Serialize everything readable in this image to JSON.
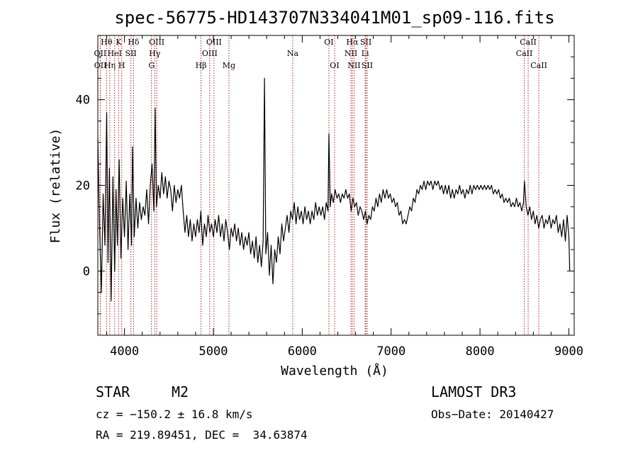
{
  "chart_data": {
    "type": "line",
    "title": "spec-56775-HD143707N334041M01_sp09-116.fits",
    "xlabel": "Wavelength (Å)",
    "ylabel": "Flux (relative)",
    "xlim": [
      3700,
      9060
    ],
    "ylim": [
      -15,
      55
    ],
    "xticks": [
      4000,
      5000,
      6000,
      7000,
      8000,
      9000
    ],
    "yticks": [
      0,
      20,
      40
    ],
    "grid": false,
    "series": [
      {
        "color": "#000000",
        "points": [
          [
            3700,
            31
          ],
          [
            3720,
            10
          ],
          [
            3740,
            -5
          ],
          [
            3760,
            18
          ],
          [
            3780,
            6
          ],
          [
            3800,
            37
          ],
          [
            3815,
            2
          ],
          [
            3830,
            24
          ],
          [
            3850,
            -7
          ],
          [
            3870,
            22
          ],
          [
            3890,
            0
          ],
          [
            3905,
            19
          ],
          [
            3920,
            6
          ],
          [
            3940,
            26
          ],
          [
            3960,
            3
          ],
          [
            3980,
            17
          ],
          [
            4000,
            8
          ],
          [
            4020,
            21
          ],
          [
            4040,
            5
          ],
          [
            4060,
            18
          ],
          [
            4080,
            6
          ],
          [
            4090,
            29
          ],
          [
            4110,
            8
          ],
          [
            4130,
            17
          ],
          [
            4150,
            10
          ],
          [
            4170,
            16
          ],
          [
            4190,
            12
          ],
          [
            4210,
            15
          ],
          [
            4230,
            13
          ],
          [
            4250,
            19
          ],
          [
            4270,
            11
          ],
          [
            4290,
            20
          ],
          [
            4310,
            25
          ],
          [
            4330,
            14
          ],
          [
            4345,
            38
          ],
          [
            4360,
            15
          ],
          [
            4380,
            20
          ],
          [
            4400,
            17
          ],
          [
            4420,
            23
          ],
          [
            4440,
            18
          ],
          [
            4460,
            22
          ],
          [
            4480,
            17
          ],
          [
            4500,
            21
          ],
          [
            4520,
            19
          ],
          [
            4540,
            14
          ],
          [
            4560,
            20
          ],
          [
            4580,
            16
          ],
          [
            4600,
            19
          ],
          [
            4620,
            17
          ],
          [
            4640,
            20
          ],
          [
            4660,
            14
          ],
          [
            4680,
            9
          ],
          [
            4700,
            13
          ],
          [
            4720,
            8
          ],
          [
            4740,
            12
          ],
          [
            4760,
            7
          ],
          [
            4780,
            11
          ],
          [
            4800,
            8
          ],
          [
            4820,
            12
          ],
          [
            4840,
            9
          ],
          [
            4860,
            14
          ],
          [
            4880,
            6
          ],
          [
            4900,
            11
          ],
          [
            4920,
            8
          ],
          [
            4940,
            13
          ],
          [
            4960,
            9
          ],
          [
            4980,
            11
          ],
          [
            5000,
            8
          ],
          [
            5020,
            12
          ],
          [
            5040,
            9
          ],
          [
            5060,
            13
          ],
          [
            5080,
            8
          ],
          [
            5100,
            11
          ],
          [
            5120,
            7
          ],
          [
            5140,
            12
          ],
          [
            5160,
            9
          ],
          [
            5180,
            5
          ],
          [
            5200,
            10
          ],
          [
            5220,
            8
          ],
          [
            5240,
            11
          ],
          [
            5260,
            7
          ],
          [
            5280,
            10
          ],
          [
            5300,
            6
          ],
          [
            5320,
            9
          ],
          [
            5340,
            5
          ],
          [
            5360,
            8
          ],
          [
            5380,
            6
          ],
          [
            5400,
            9
          ],
          [
            5420,
            4
          ],
          [
            5440,
            7
          ],
          [
            5460,
            3
          ],
          [
            5480,
            8
          ],
          [
            5500,
            2
          ],
          [
            5520,
            6
          ],
          [
            5540,
            1
          ],
          [
            5560,
            7
          ],
          [
            5575,
            45
          ],
          [
            5590,
            4
          ],
          [
            5610,
            9
          ],
          [
            5630,
            -1
          ],
          [
            5650,
            6
          ],
          [
            5670,
            -3
          ],
          [
            5690,
            5
          ],
          [
            5710,
            2
          ],
          [
            5730,
            8
          ],
          [
            5750,
            4
          ],
          [
            5770,
            11
          ],
          [
            5790,
            7
          ],
          [
            5810,
            10
          ],
          [
            5830,
            13
          ],
          [
            5850,
            9
          ],
          [
            5870,
            14
          ],
          [
            5890,
            12
          ],
          [
            5910,
            16
          ],
          [
            5930,
            11
          ],
          [
            5950,
            15
          ],
          [
            5970,
            12
          ],
          [
            5990,
            14
          ],
          [
            6010,
            11
          ],
          [
            6030,
            15
          ],
          [
            6050,
            12
          ],
          [
            6070,
            14
          ],
          [
            6090,
            11
          ],
          [
            6110,
            14
          ],
          [
            6130,
            12
          ],
          [
            6150,
            16
          ],
          [
            6170,
            13
          ],
          [
            6190,
            15
          ],
          [
            6210,
            13
          ],
          [
            6230,
            15
          ],
          [
            6250,
            12
          ],
          [
            6270,
            16
          ],
          [
            6290,
            14
          ],
          [
            6300,
            32
          ],
          [
            6315,
            15
          ],
          [
            6330,
            18
          ],
          [
            6350,
            16
          ],
          [
            6370,
            19
          ],
          [
            6390,
            17
          ],
          [
            6410,
            18
          ],
          [
            6430,
            16
          ],
          [
            6450,
            18
          ],
          [
            6470,
            17
          ],
          [
            6490,
            19
          ],
          [
            6510,
            17
          ],
          [
            6530,
            18
          ],
          [
            6550,
            14
          ],
          [
            6570,
            17
          ],
          [
            6590,
            15
          ],
          [
            6610,
            16
          ],
          [
            6630,
            13
          ],
          [
            6650,
            15
          ],
          [
            6670,
            14
          ],
          [
            6690,
            12
          ],
          [
            6710,
            14
          ],
          [
            6730,
            11
          ],
          [
            6750,
            13
          ],
          [
            6770,
            12
          ],
          [
            6790,
            15
          ],
          [
            6810,
            14
          ],
          [
            6830,
            17
          ],
          [
            6850,
            15
          ],
          [
            6870,
            18
          ],
          [
            6890,
            16
          ],
          [
            6910,
            19
          ],
          [
            6930,
            17
          ],
          [
            6950,
            19
          ],
          [
            6970,
            17
          ],
          [
            6990,
            18
          ],
          [
            7010,
            16
          ],
          [
            7030,
            17
          ],
          [
            7050,
            15
          ],
          [
            7070,
            16
          ],
          [
            7090,
            13
          ],
          [
            7110,
            14
          ],
          [
            7130,
            11
          ],
          [
            7150,
            12
          ],
          [
            7170,
            11
          ],
          [
            7190,
            13
          ],
          [
            7210,
            15
          ],
          [
            7230,
            14
          ],
          [
            7250,
            17
          ],
          [
            7270,
            16
          ],
          [
            7290,
            19
          ],
          [
            7310,
            18
          ],
          [
            7330,
            20
          ],
          [
            7350,
            19
          ],
          [
            7370,
            21
          ],
          [
            7390,
            19
          ],
          [
            7410,
            21
          ],
          [
            7430,
            20
          ],
          [
            7450,
            21
          ],
          [
            7470,
            19
          ],
          [
            7490,
            21
          ],
          [
            7510,
            20
          ],
          [
            7530,
            21
          ],
          [
            7550,
            19
          ],
          [
            7570,
            20
          ],
          [
            7590,
            18
          ],
          [
            7610,
            20
          ],
          [
            7630,
            18
          ],
          [
            7650,
            20
          ],
          [
            7670,
            17
          ],
          [
            7690,
            19
          ],
          [
            7710,
            17
          ],
          [
            7730,
            19
          ],
          [
            7750,
            18
          ],
          [
            7770,
            20
          ],
          [
            7790,
            18
          ],
          [
            7810,
            19
          ],
          [
            7830,
            17
          ],
          [
            7850,
            19
          ],
          [
            7870,
            18
          ],
          [
            7890,
            20
          ],
          [
            7910,
            18
          ],
          [
            7930,
            20
          ],
          [
            7950,
            19
          ],
          [
            7970,
            20
          ],
          [
            7990,
            19
          ],
          [
            8010,
            20
          ],
          [
            8030,
            19
          ],
          [
            8050,
            20
          ],
          [
            8070,
            19
          ],
          [
            8090,
            20
          ],
          [
            8110,
            19
          ],
          [
            8130,
            20
          ],
          [
            8150,
            18
          ],
          [
            8170,
            19
          ],
          [
            8190,
            18
          ],
          [
            8210,
            19
          ],
          [
            8230,
            17
          ],
          [
            8250,
            18
          ],
          [
            8270,
            16
          ],
          [
            8290,
            17
          ],
          [
            8310,
            16
          ],
          [
            8330,
            17
          ],
          [
            8350,
            15
          ],
          [
            8370,
            16
          ],
          [
            8390,
            15
          ],
          [
            8410,
            17
          ],
          [
            8430,
            15
          ],
          [
            8450,
            16
          ],
          [
            8470,
            14
          ],
          [
            8490,
            16
          ],
          [
            8500,
            21
          ],
          [
            8520,
            15
          ],
          [
            8540,
            13
          ],
          [
            8560,
            15
          ],
          [
            8580,
            12
          ],
          [
            8600,
            14
          ],
          [
            8620,
            11
          ],
          [
            8640,
            13
          ],
          [
            8660,
            10
          ],
          [
            8680,
            12
          ],
          [
            8700,
            13
          ],
          [
            8720,
            10
          ],
          [
            8740,
            12
          ],
          [
            8760,
            11
          ],
          [
            8780,
            13
          ],
          [
            8800,
            10
          ],
          [
            8820,
            12
          ],
          [
            8840,
            11
          ],
          [
            8860,
            13
          ],
          [
            8880,
            9
          ],
          [
            8900,
            11
          ],
          [
            8920,
            8
          ],
          [
            8940,
            12
          ],
          [
            8960,
            7
          ],
          [
            8980,
            13
          ],
          [
            9000,
            8
          ],
          [
            9010,
            0
          ]
        ]
      }
    ],
    "lines": [
      {
        "label": "Hθ",
        "x": 3798,
        "row": 1
      },
      {
        "label": "OII",
        "x": 3727,
        "row": 2
      },
      {
        "label": "OII",
        "x": 3729,
        "row": 3
      },
      {
        "label": "Hη",
        "x": 3835,
        "row": 3
      },
      {
        "label": "K",
        "x": 3934,
        "row": 1
      },
      {
        "label": "HeI",
        "x": 3889,
        "row": 2
      },
      {
        "label": "H",
        "x": 3969,
        "row": 3
      },
      {
        "label": "Hδ",
        "x": 4102,
        "row": 1
      },
      {
        "label": "SII",
        "x": 4072,
        "row": 2
      },
      {
        "label": "OIII",
        "x": 4363,
        "row": 1
      },
      {
        "label": "Hγ",
        "x": 4340,
        "row": 2
      },
      {
        "label": "G",
        "x": 4304,
        "row": 3
      },
      {
        "label": "OIII",
        "x": 5007,
        "row": 1
      },
      {
        "label": "OIII",
        "x": 4959,
        "row": 2
      },
      {
        "label": "Hβ",
        "x": 4861,
        "row": 3
      },
      {
        "label": "Mg",
        "x": 5175,
        "row": 3
      },
      {
        "label": "Na",
        "x": 5893,
        "row": 2
      },
      {
        "label": "OI",
        "x": 6300,
        "row": 1
      },
      {
        "label": "OI",
        "x": 6364,
        "row": 3
      },
      {
        "label": "Hα",
        "x": 6563,
        "row": 1
      },
      {
        "label": "SII",
        "x": 6716,
        "row": 1
      },
      {
        "label": "NII",
        "x": 6548,
        "row": 2
      },
      {
        "label": "Li",
        "x": 6708,
        "row": 2
      },
      {
        "label": "NII",
        "x": 6583,
        "row": 3
      },
      {
        "label": "SII",
        "x": 6731,
        "row": 3
      },
      {
        "label": "CaII",
        "x": 8542,
        "row": 1
      },
      {
        "label": "CaII",
        "x": 8498,
        "row": 2
      },
      {
        "label": "CaII",
        "x": 8662,
        "row": 3
      }
    ]
  },
  "info": {
    "class": "STAR",
    "subclass": "M2",
    "survey": "LAMOST DR3",
    "cz": "cz = −150.2 ± 16.8 km/s",
    "obs_date": "Obs−Date: 20140427",
    "coords": "RA = 219.89451, DEC =  34.63874"
  }
}
